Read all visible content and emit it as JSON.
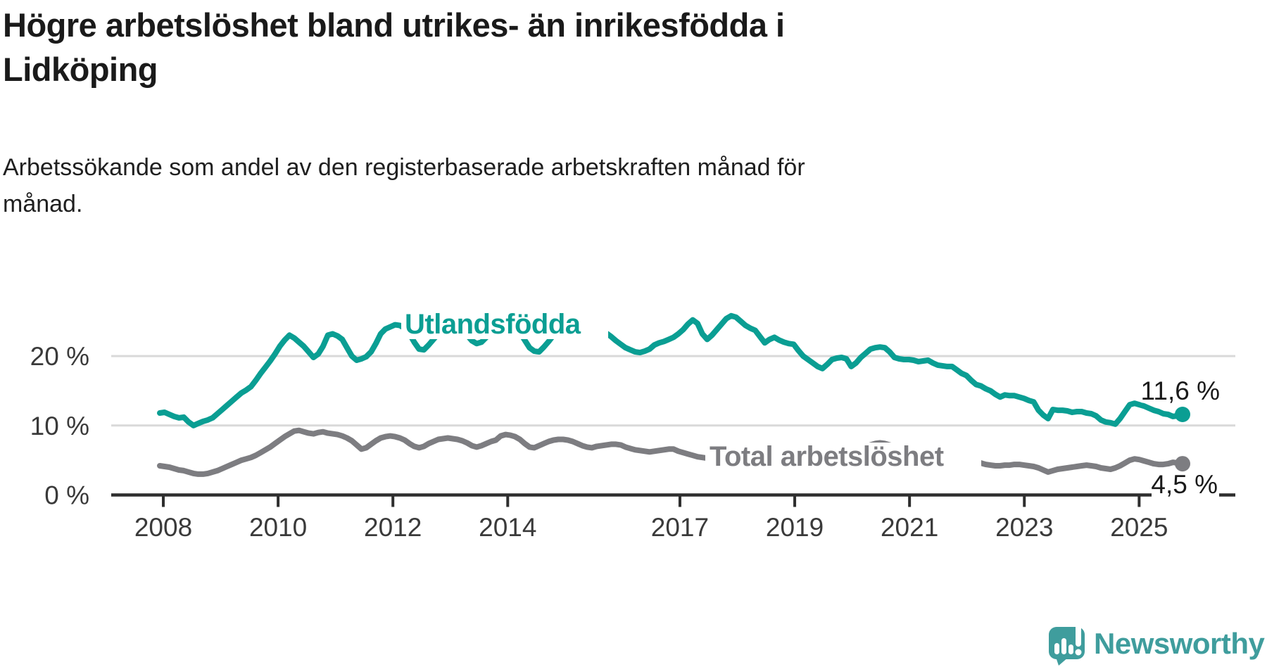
{
  "header": {
    "title": "Högre arbetslöshet bland utrikes- än inrikesfödda i Lidköping",
    "title_lines": [
      "Högre arbetslöshet bland utrikes- än inrikesfödda i",
      "Lidköping"
    ],
    "subtitle": "Arbetssökande som andel av den registerbaserade arbetskraften månad för månad.",
    "subtitle_lines": [
      "Arbetssökande som andel av den registerbaserade arbetskraften månad för",
      "månad."
    ]
  },
  "branding": {
    "logo_text": "Newsworthy",
    "logo_color": "#3f9d9d",
    "logo_icon": "speech-bubble-bar-chart-exclamation"
  },
  "colors": {
    "accent_teal": "#0a9e93",
    "neutral_gray": "#7d7d81",
    "axis": "#2e2e2e",
    "gridline": "#d9d9d9",
    "text_dark": "#1a1a1a",
    "tick_text": "#3a3a3a",
    "background": "#ffffff"
  },
  "chart_data": {
    "type": "line",
    "x_start": "2008-01",
    "x_end": "2025-10",
    "frequency": "monthly",
    "x_tick_years": [
      2008,
      2010,
      2012,
      2014,
      2017,
      2019,
      2021,
      2023,
      2025
    ],
    "x_tick_labels": [
      "2008",
      "2010",
      "2012",
      "2014",
      "2017",
      "2019",
      "2021",
      "2023",
      "2025"
    ],
    "y_ticks": [
      {
        "value": 0,
        "label": "0 %"
      },
      {
        "value": 10,
        "label": "10 %"
      },
      {
        "value": 20,
        "label": "20 %"
      }
    ],
    "ylim": [
      0,
      27
    ],
    "grid": "horizontal",
    "legend": "inline-labels",
    "series": [
      {
        "name": "Utlandsfödda",
        "color": "#0a9e93",
        "end_label": "11,6 %",
        "end_value": 11.6,
        "values": [
          11.8,
          11.9,
          11.6,
          11.3,
          11.1,
          11.2,
          10.5,
          10.0,
          10.3,
          10.6,
          10.8,
          11.1,
          11.7,
          12.3,
          12.9,
          13.5,
          14.1,
          14.7,
          15.1,
          15.6,
          16.5,
          17.5,
          18.4,
          19.3,
          20.3,
          21.4,
          22.3,
          23.0,
          22.6,
          22.0,
          21.4,
          20.6,
          19.8,
          20.3,
          21.4,
          23.0,
          23.2,
          22.9,
          22.4,
          21.2,
          20.0,
          19.4,
          19.6,
          19.9,
          20.6,
          21.8,
          23.2,
          23.9,
          24.2,
          24.5,
          24.4,
          24.0,
          23.2,
          22.0,
          21.0,
          20.9,
          21.6,
          22.4,
          23.2,
          23.9,
          24.3,
          24.6,
          24.4,
          23.8,
          23.0,
          22.2,
          21.8,
          22.0,
          22.7,
          23.4,
          24.0,
          24.5,
          24.7,
          24.7,
          24.2,
          23.4,
          22.3,
          21.2,
          20.7,
          20.6,
          21.3,
          22.1,
          23.0,
          23.8,
          24.4,
          24.6,
          24.4,
          24.0,
          23.9,
          23.8,
          23.7,
          23.8,
          23.8,
          23.3,
          22.8,
          22.2,
          21.7,
          21.2,
          20.9,
          20.6,
          20.5,
          20.7,
          21.0,
          21.6,
          21.9,
          22.1,
          22.4,
          22.7,
          23.2,
          23.8,
          24.6,
          25.2,
          24.7,
          23.2,
          22.4,
          23.0,
          23.8,
          24.6,
          25.4,
          25.8,
          25.6,
          25.0,
          24.4,
          24.0,
          23.7,
          22.8,
          21.9,
          22.4,
          22.7,
          22.3,
          22.0,
          21.8,
          21.7,
          20.8,
          20.0,
          19.5,
          19.0,
          18.5,
          18.2,
          18.8,
          19.5,
          19.7,
          19.8,
          19.6,
          18.5,
          19.0,
          19.8,
          20.4,
          21.0,
          21.2,
          21.3,
          21.2,
          20.6,
          19.8,
          19.6,
          19.5,
          19.5,
          19.4,
          19.2,
          19.3,
          19.4,
          19.0,
          18.7,
          18.6,
          18.5,
          18.5,
          18.0,
          17.5,
          17.2,
          16.5,
          15.9,
          15.7,
          15.3,
          15.0,
          14.5,
          14.1,
          14.4,
          14.3,
          14.3,
          14.1,
          13.9,
          13.6,
          13.4,
          12.2,
          11.5,
          11.0,
          12.3,
          12.2,
          12.2,
          12.1,
          11.9,
          12.0,
          12.0,
          11.8,
          11.7,
          11.4,
          10.8,
          10.5,
          10.4,
          10.2,
          11.0,
          12.0,
          13.0,
          13.2,
          13.0,
          12.8,
          12.5,
          12.2,
          12.0,
          11.7,
          11.6,
          11.3,
          11.4,
          11.6
        ]
      },
      {
        "name": "Total arbetslöshet",
        "color": "#7d7d81",
        "end_label": "4,5 %",
        "end_value": 4.5,
        "values": [
          4.2,
          4.1,
          4.0,
          3.8,
          3.6,
          3.5,
          3.3,
          3.1,
          3.0,
          3.0,
          3.1,
          3.3,
          3.5,
          3.8,
          4.1,
          4.4,
          4.7,
          5.0,
          5.2,
          5.4,
          5.7,
          6.1,
          6.5,
          6.9,
          7.4,
          7.9,
          8.4,
          8.8,
          9.2,
          9.3,
          9.1,
          8.9,
          8.8,
          9.0,
          9.1,
          8.9,
          8.8,
          8.7,
          8.5,
          8.2,
          7.8,
          7.2,
          6.6,
          6.8,
          7.3,
          7.8,
          8.2,
          8.4,
          8.5,
          8.4,
          8.2,
          7.9,
          7.4,
          7.0,
          6.8,
          7.0,
          7.4,
          7.7,
          8.0,
          8.1,
          8.2,
          8.1,
          8.0,
          7.8,
          7.5,
          7.1,
          6.9,
          7.1,
          7.4,
          7.7,
          7.9,
          8.5,
          8.7,
          8.6,
          8.4,
          8.0,
          7.4,
          6.9,
          6.8,
          7.1,
          7.4,
          7.7,
          7.9,
          8.0,
          8.0,
          7.9,
          7.7,
          7.4,
          7.1,
          6.9,
          6.8,
          7.0,
          7.1,
          7.2,
          7.3,
          7.3,
          7.2,
          6.9,
          6.7,
          6.5,
          6.4,
          6.3,
          6.2,
          6.3,
          6.4,
          6.5,
          6.6,
          6.6,
          6.3,
          6.1,
          5.9,
          5.7,
          5.5,
          5.4,
          5.3,
          5.3,
          5.4,
          5.4,
          5.5,
          5.5,
          5.4,
          5.3,
          5.2,
          5.1,
          5.0,
          4.9,
          4.8,
          4.9,
          5.0,
          5.0,
          5.1,
          5.1,
          5.2,
          5.1,
          5.0,
          4.9,
          4.9,
          4.8,
          4.8,
          4.9,
          5.0,
          5.1,
          5.2,
          5.3,
          5.5,
          5.7,
          6.2,
          6.8,
          7.2,
          7.4,
          7.5,
          7.4,
          7.2,
          7.0,
          6.9,
          6.8,
          6.7,
          6.6,
          6.5,
          6.3,
          6.1,
          5.9,
          5.7,
          5.6,
          5.5,
          5.4,
          5.3,
          5.2,
          5.0,
          4.9,
          4.8,
          4.6,
          4.4,
          4.3,
          4.2,
          4.2,
          4.3,
          4.3,
          4.4,
          4.4,
          4.3,
          4.2,
          4.1,
          3.9,
          3.6,
          3.3,
          3.5,
          3.7,
          3.8,
          3.9,
          4.0,
          4.1,
          4.2,
          4.3,
          4.2,
          4.1,
          3.9,
          3.8,
          3.7,
          3.9,
          4.2,
          4.6,
          5.0,
          5.2,
          5.1,
          4.9,
          4.7,
          4.5,
          4.4,
          4.4,
          4.5,
          4.7,
          4.6,
          4.5
        ]
      }
    ]
  }
}
